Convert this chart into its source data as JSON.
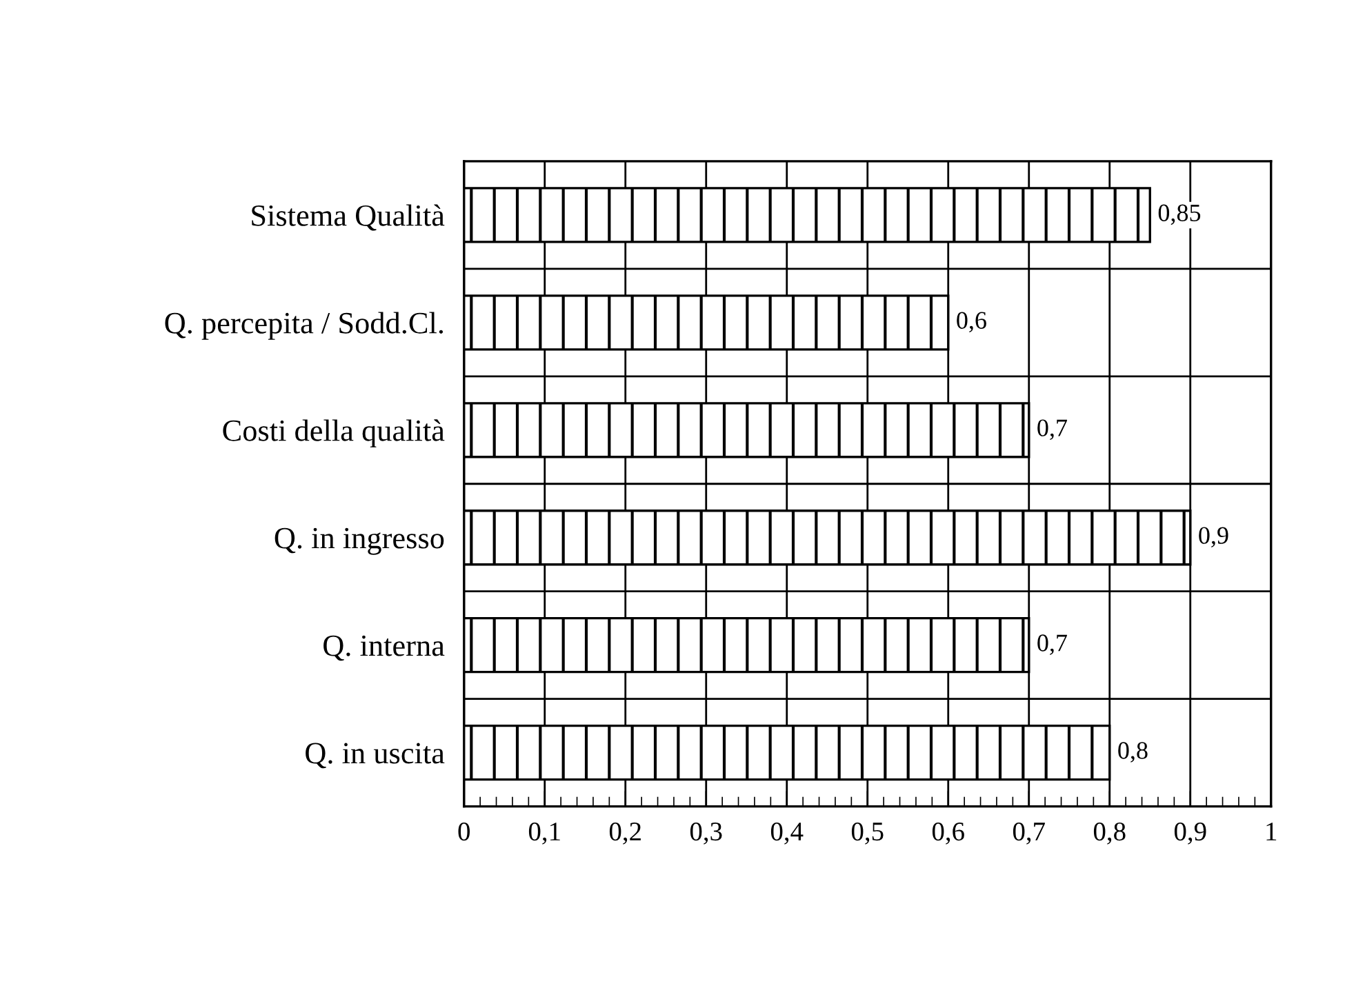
{
  "chart_data": {
    "type": "bar",
    "orientation": "horizontal",
    "categories": [
      "Sistema Qualità",
      "Q. percepita / Sodd.Cl.",
      "Costi della qualità",
      "Q. in ingresso",
      "Q. interna",
      "Q. in uscita"
    ],
    "values": [
      0.85,
      0.6,
      0.7,
      0.9,
      0.7,
      0.8
    ],
    "value_labels": [
      "0,85",
      "0,6",
      "0,7",
      "0,9",
      "0,7",
      "0,8"
    ],
    "color": "#000000",
    "xlim": [
      0,
      1
    ],
    "xticks": [
      0,
      {
        "value": 0.1,
        "label": "0,1"
      },
      {
        "value": 0.2,
        "label": "0,2"
      },
      {
        "value": 0.3,
        "label": "0,3"
      },
      {
        "value": 0.4,
        "label": "0,4"
      },
      {
        "value": 0.5,
        "label": "0,5"
      },
      {
        "value": 0.6,
        "label": "0,6"
      },
      {
        "value": 0.7,
        "label": "0,7"
      },
      {
        "value": 0.8,
        "label": "0,8"
      },
      {
        "value": 0.9,
        "label": "0,9"
      },
      1
    ],
    "grid": true
  }
}
